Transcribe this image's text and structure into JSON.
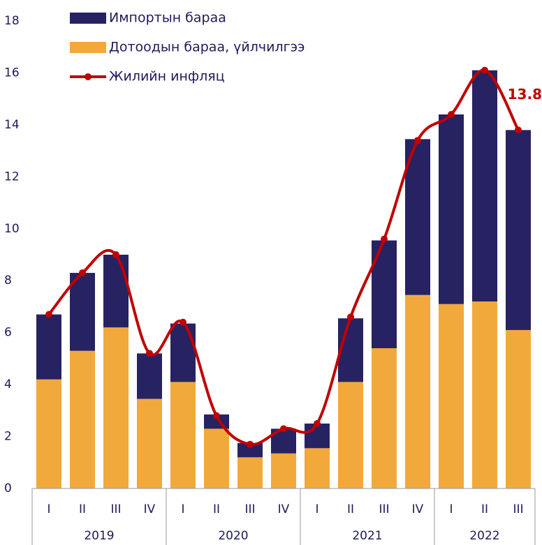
{
  "chart_data": {
    "type": "bar",
    "categories": [
      "I",
      "II",
      "III",
      "IV",
      "I",
      "II",
      "III",
      "IV",
      "I",
      "II",
      "III",
      "IV",
      "I",
      "II",
      "III"
    ],
    "groups": [
      "2019",
      "2020",
      "2021",
      "2022"
    ],
    "ylim": [
      0,
      18
    ],
    "yticks": [
      0,
      2,
      4,
      6,
      8,
      10,
      12,
      14,
      16,
      18
    ],
    "stacked": true,
    "grid": false,
    "legend": "top-left",
    "series": [
      {
        "name": "Дотоодын бараа, үйлчилгээ",
        "color": "#f2a93b",
        "kind": "bar",
        "values": [
          4.2,
          5.3,
          6.2,
          3.45,
          4.1,
          2.3,
          1.2,
          1.35,
          1.55,
          4.1,
          5.4,
          7.45,
          7.1,
          7.2,
          6.1
        ]
      },
      {
        "name": "Импортын бараа",
        "color": "#272262",
        "kind": "bar",
        "values": [
          2.5,
          3.0,
          2.8,
          1.75,
          2.25,
          0.55,
          0.55,
          0.95,
          0.95,
          2.45,
          4.15,
          6.0,
          7.3,
          8.9,
          7.7
        ]
      },
      {
        "name": "Жилийн инфляц",
        "color": "#c00000",
        "kind": "line",
        "smooth": true,
        "values": [
          6.7,
          8.3,
          9.0,
          5.2,
          6.4,
          2.8,
          1.7,
          2.3,
          2.5,
          6.6,
          9.6,
          13.4,
          14.4,
          16.1,
          13.8
        ],
        "value_labels": [
          null,
          null,
          null,
          null,
          null,
          null,
          null,
          null,
          null,
          null,
          null,
          null,
          null,
          null,
          "13.8"
        ]
      }
    ]
  }
}
